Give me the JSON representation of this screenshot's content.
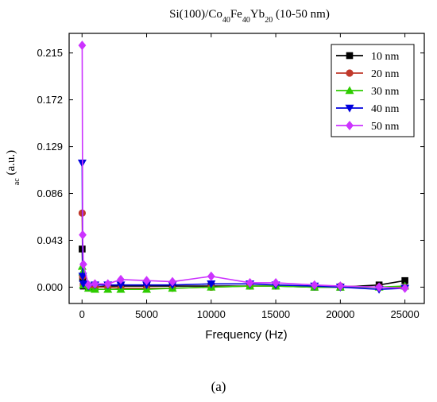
{
  "caption": "(a)",
  "chart_data": {
    "type": "line",
    "title_parts": [
      {
        "text": "Si(100)/Co",
        "sub": false
      },
      {
        "text": "40",
        "sub": true
      },
      {
        "text": "Fe",
        "sub": false
      },
      {
        "text": "40",
        "sub": true
      },
      {
        "text": "Yb",
        "sub": false
      },
      {
        "text": "20",
        "sub": true
      },
      {
        "text": " (10-50 nm)",
        "sub": false
      }
    ],
    "xlabel": "Frequency (Hz)",
    "ylabel_parts": [
      {
        "text": "ac",
        "sub": true
      },
      {
        "text": " (a.u.)",
        "sub": false
      }
    ],
    "xlim": [
      -1000,
      26500
    ],
    "ylim": [
      -0.015,
      0.233
    ],
    "xticks": [
      0,
      5000,
      10000,
      15000,
      20000,
      25000
    ],
    "yticks": [
      0.0,
      0.043,
      0.086,
      0.129,
      0.172,
      0.215
    ],
    "ytick_labels": [
      "0.000",
      "0.043",
      "0.086",
      "0.129",
      "0.172",
      "0.215"
    ],
    "grid": false,
    "legend_position": "top-right",
    "series": [
      {
        "name": "10 nm",
        "color": "#000000",
        "marker": "square",
        "x": [
          10,
          50,
          100,
          500,
          1000,
          2000,
          3000,
          5000,
          7000,
          10000,
          13000,
          15000,
          18000,
          20000,
          23000,
          25000
        ],
        "y": [
          0.035,
          0.008,
          0.001,
          0.0,
          0.0,
          0.001,
          0.001,
          0.001,
          0.001,
          0.001,
          0.001,
          0.001,
          0.0,
          0.0,
          0.002,
          0.006
        ]
      },
      {
        "name": "20 nm",
        "color": "#c0392b",
        "marker": "circle",
        "x": [
          10,
          50,
          100,
          500,
          1000,
          2000,
          3000,
          5000,
          7000,
          10000,
          13000,
          15000,
          18000,
          20000,
          23000,
          25000
        ],
        "y": [
          0.068,
          0.01,
          0.002,
          0.0,
          0.0,
          0.0,
          -0.001,
          -0.001,
          -0.001,
          0.0,
          0.001,
          0.001,
          0.001,
          0.001,
          0.0,
          0.0
        ]
      },
      {
        "name": "30 nm",
        "color": "#2ecc00",
        "marker": "triangle-up",
        "x": [
          10,
          50,
          100,
          500,
          1000,
          2000,
          3000,
          5000,
          7000,
          10000,
          13000,
          15000,
          18000,
          20000,
          23000,
          25000
        ],
        "y": [
          0.019,
          0.014,
          0.002,
          -0.001,
          -0.002,
          -0.002,
          -0.002,
          -0.002,
          -0.001,
          0.0,
          0.001,
          0.001,
          0.0,
          0.0,
          0.0,
          0.001
        ]
      },
      {
        "name": "40 nm",
        "color": "#0000dd",
        "marker": "triangle-down",
        "x": [
          10,
          50,
          100,
          500,
          1000,
          2000,
          3000,
          5000,
          7000,
          10000,
          13000,
          15000,
          18000,
          20000,
          23000,
          25000
        ],
        "y": [
          0.114,
          0.01,
          0.003,
          0.001,
          0.002,
          0.002,
          0.002,
          0.002,
          0.002,
          0.003,
          0.003,
          0.002,
          0.001,
          0.0,
          -0.002,
          -0.001
        ]
      },
      {
        "name": "50 nm",
        "color": "#cc33ff",
        "marker": "diamond",
        "x": [
          10,
          50,
          100,
          500,
          1000,
          2000,
          3000,
          5000,
          7000,
          10000,
          13000,
          15000,
          18000,
          20000,
          23000,
          25000
        ],
        "y": [
          0.222,
          0.048,
          0.021,
          0.002,
          0.003,
          0.003,
          0.007,
          0.006,
          0.005,
          0.01,
          0.004,
          0.004,
          0.002,
          0.001,
          0.0,
          -0.001
        ]
      }
    ]
  }
}
